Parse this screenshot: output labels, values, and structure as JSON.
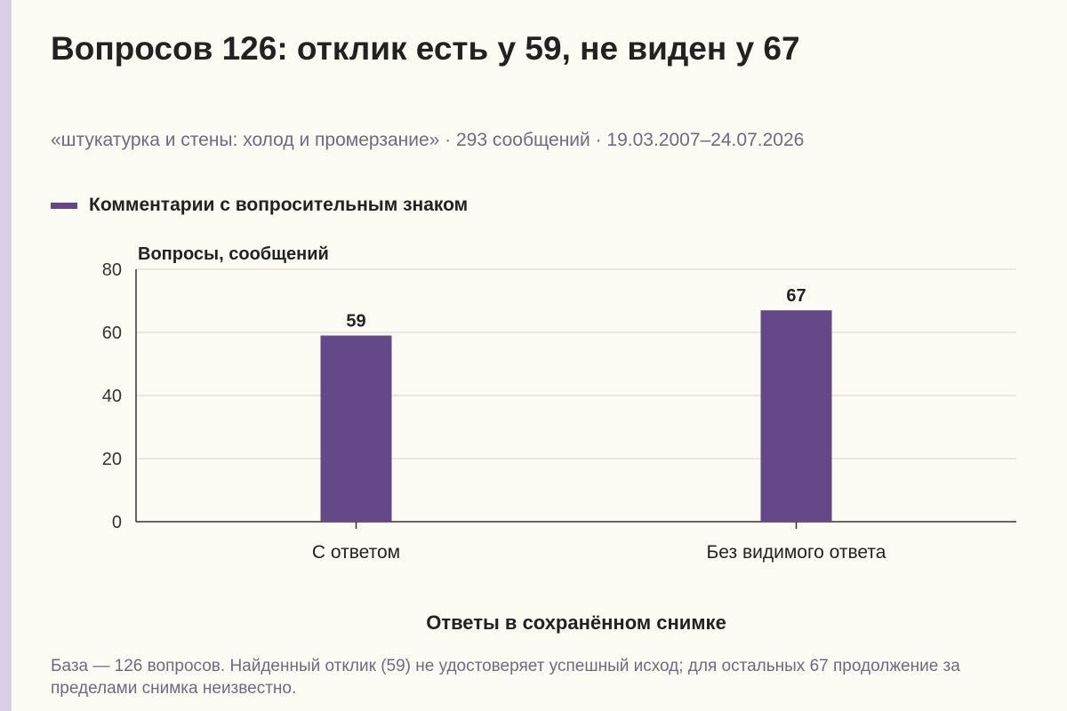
{
  "title": "Вопросов 126: отклик есть у 59, не виден у 67",
  "subtitle": "«штукатурка и стены: холод и промерзание» · 293 сообщений · 19.03.2007–24.07.2026",
  "footnote": "База — 126 вопросов. Найденный отклик (59) не удостоверяет успешный исход; для остальных 67 продолжение за пределами снимка неизвестно.",
  "colors": {
    "bar": "#654887",
    "accent_strip": "#d9cfe8",
    "grid": "#d6d3cc"
  },
  "chart_data": {
    "type": "bar",
    "categories": [
      "С ответом",
      "Без видимого ответа"
    ],
    "series": [
      {
        "name": "Комментарии с вопросительным знаком",
        "values": [
          59,
          67
        ]
      }
    ],
    "data_labels": [
      "59",
      "67"
    ],
    "ylabel": "Вопросы, сообщений",
    "xlabel": "Ответы в сохранённом снимке",
    "ylim": [
      0,
      80
    ],
    "yticks": [
      0,
      20,
      40,
      60,
      80
    ],
    "grid": true,
    "legend": "top-left"
  }
}
